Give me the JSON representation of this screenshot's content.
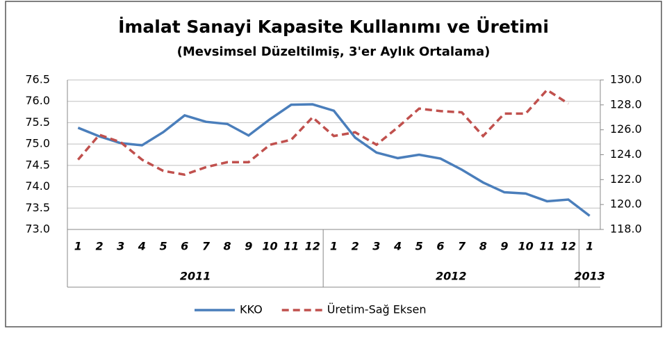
{
  "chart_data": {
    "type": "line",
    "title": "İmalat Sanayi Kapasite Kullanımı ve Üretimi",
    "subtitle": "(Mevsimsel Düzeltilmiş, 3'er Aylık Ortalama)",
    "categories": [
      "1",
      "2",
      "3",
      "4",
      "5",
      "6",
      "7",
      "8",
      "9",
      "10",
      "11",
      "12",
      "1",
      "2",
      "3",
      "4",
      "5",
      "6",
      "7",
      "8",
      "9",
      "10",
      "11",
      "12",
      "1"
    ],
    "year_labels": [
      "2011",
      "2012",
      "2013"
    ],
    "series": [
      {
        "name": "KKO",
        "color": "#4a7ebb",
        "dashed": false,
        "values": [
          75.38,
          75.18,
          75.02,
          74.97,
          75.28,
          75.67,
          75.52,
          75.47,
          75.2,
          75.58,
          75.92,
          75.93,
          75.78,
          75.15,
          74.8,
          74.67,
          74.75,
          74.66,
          74.4,
          74.1,
          73.87,
          73.84,
          73.66,
          73.7,
          73.32
        ]
      },
      {
        "name": "Üretim-Sağ Eksen",
        "color": "#c0504d",
        "dashed": true,
        "axis": "y2",
        "values": [
          123.6,
          125.6,
          125.0,
          123.6,
          122.7,
          122.4,
          123.0,
          123.4,
          123.4,
          124.8,
          125.2,
          127.0,
          125.5,
          125.8,
          124.8,
          126.2,
          127.7,
          127.5,
          127.4,
          125.5,
          127.3,
          127.3,
          129.2,
          128.1,
          null
        ]
      }
    ],
    "ylim": [
      73,
      76.5
    ],
    "yticks": [
      {
        "value": 73,
        "label": "73.0"
      },
      {
        "value": 73.5,
        "label": "73.5"
      },
      {
        "value": 74,
        "label": "74.0"
      },
      {
        "value": 74.5,
        "label": "74.5"
      },
      {
        "value": 75,
        "label": "75.0"
      },
      {
        "value": 75.5,
        "label": "75.5"
      },
      {
        "value": 76,
        "label": "76.0"
      },
      {
        "value": 76.5,
        "label": "76.5"
      }
    ],
    "y2lim": [
      118,
      130
    ],
    "y2ticks": [
      {
        "value": 118,
        "label": "118.0"
      },
      {
        "value": 120,
        "label": "120.0"
      },
      {
        "value": 122,
        "label": "122.0"
      },
      {
        "value": 124,
        "label": "124.0"
      },
      {
        "value": 126,
        "label": "126.0"
      },
      {
        "value": 128,
        "label": "128.0"
      },
      {
        "value": 130,
        "label": "130.0"
      }
    ],
    "grid": true
  }
}
